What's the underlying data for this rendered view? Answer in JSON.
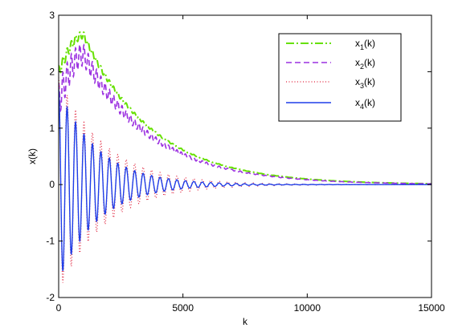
{
  "chart_data": {
    "type": "line",
    "title": "",
    "xlabel": "k",
    "ylabel": "x(k)",
    "xlim": [
      0,
      15000
    ],
    "ylim": [
      -2,
      3
    ],
    "xticks": [
      0,
      5000,
      10000,
      15000
    ],
    "yticks": [
      -2,
      -1,
      0,
      1,
      2,
      3
    ],
    "grid": false,
    "legend_position": "top-right",
    "series": [
      {
        "name": "x_1(k)",
        "label_main": "x",
        "label_sub": "1",
        "label_tail": "(k)",
        "color": "#66e000",
        "dash": "10,3,2,3",
        "stroke_width": 2,
        "envelope": {
          "peak": 2.65,
          "peak_at": 1000,
          "start": 2.0,
          "half_life": 1900
        },
        "oscillation": {
          "period": 170,
          "amplitude": 0.1,
          "amp_half_life": 1500
        }
      },
      {
        "name": "x_2(k)",
        "label_main": "x",
        "label_sub": "2",
        "label_tail": "(k)",
        "color": "#9b30e0",
        "dash": "7,4",
        "stroke_width": 1.6,
        "envelope": {
          "peak": 2.3,
          "peak_at": 1000,
          "start": 1.5,
          "half_life": 1900
        },
        "oscillation": {
          "period": 170,
          "amplitude": 0.3,
          "amp_half_life": 1500
        }
      },
      {
        "name": "x_3(k)",
        "label_main": "x",
        "label_sub": "3",
        "label_tail": "(k)",
        "color": "#e0203a",
        "dash": "1,2.5",
        "stroke_width": 1.2,
        "envelope": {
          "peak": 0,
          "peak_at": 0,
          "start": 0,
          "half_life": 1000
        },
        "oscillation": {
          "period": 340,
          "amplitude": 1.9,
          "amp_half_life": 1300
        }
      },
      {
        "name": "x_4(k)",
        "label_main": "x",
        "label_sub": "4",
        "label_tail": "(k)",
        "color": "#1e3ee8",
        "dash": "",
        "stroke_width": 1.4,
        "envelope": {
          "peak": 0,
          "peak_at": 0,
          "start": 0,
          "half_life": 1000
        },
        "oscillation": {
          "period": 340,
          "amplitude": 1.7,
          "amp_half_life": 1100
        }
      }
    ]
  }
}
